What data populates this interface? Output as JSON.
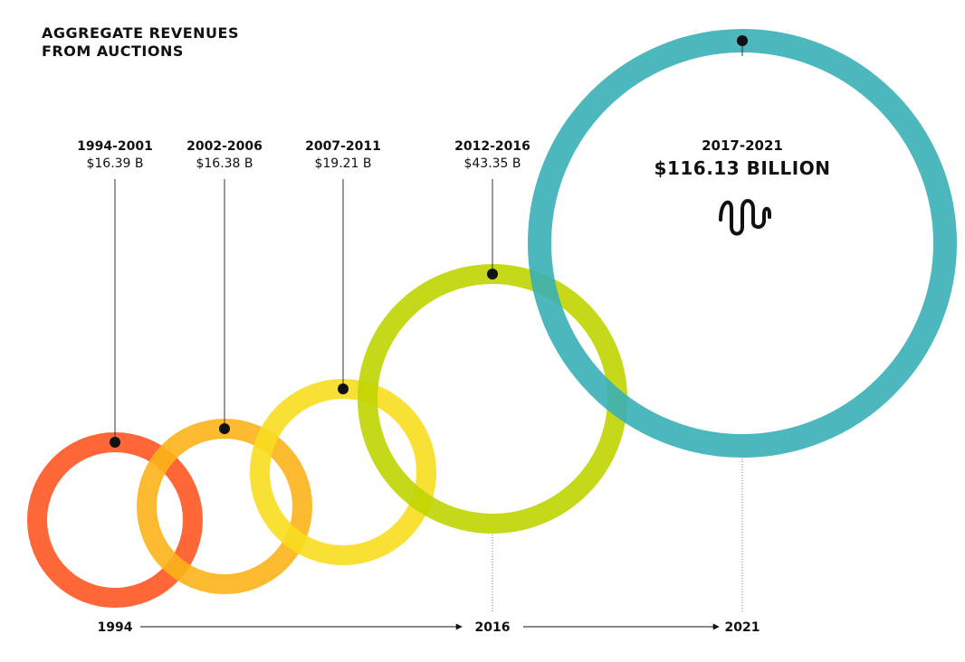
{
  "chart_data": {
    "type": "bubble-timeline",
    "title_lines": [
      "AGGREGATE REVENUES",
      "FROM AUCTIONS"
    ],
    "series": [
      {
        "period": "1994-2001",
        "value_label": "$16.39 B",
        "value": 16.39,
        "color": "#ff5722"
      },
      {
        "period": "2002-2006",
        "value_label": "$16.38 B",
        "value": 16.38,
        "color": "#fbb319"
      },
      {
        "period": "2007-2011",
        "value_label": "$19.21 B",
        "value": 19.21,
        "color": "#f8dd1e"
      },
      {
        "period": "2012-2016",
        "value_label": "$43.35 B",
        "value": 43.35,
        "color": "#bfd400"
      },
      {
        "period": "2017-2021",
        "value_label": "$116.13 BILLION",
        "value": 116.13,
        "color": "#39b0b6"
      }
    ],
    "timeline": [
      "1994",
      "2016",
      "2021"
    ],
    "wave_icon": "sound-wave-icon"
  }
}
